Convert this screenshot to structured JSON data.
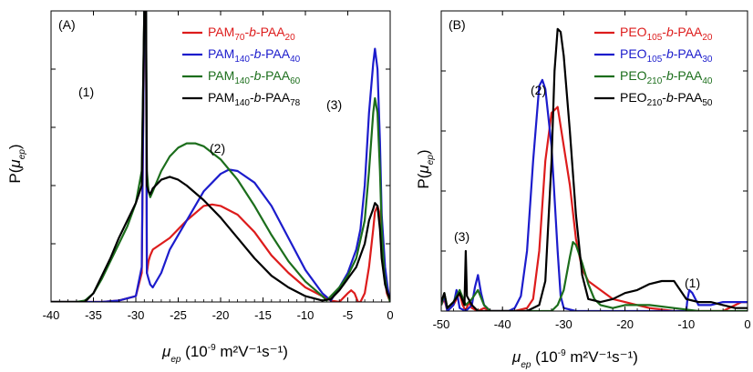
{
  "chart_data": [
    {
      "type": "line",
      "panel_label": "(A)",
      "ylabel": {
        "main": "P(",
        "italic": "μ",
        "sub": "ep",
        "close": ")"
      },
      "xlabel": {
        "italic": "μ",
        "sub": "ep",
        "pre": "(10",
        "sup": "-9",
        "post": " m²V⁻¹s⁻¹)"
      },
      "xlim": [
        -40,
        0
      ],
      "x_ticks": [
        -40,
        -35,
        -30,
        -25,
        -20,
        -15,
        -10,
        -5,
        0
      ],
      "ylim": [
        0,
        1
      ],
      "y_ticks_shown_unlabeled": [
        0.2,
        0.4,
        0.6,
        0.8
      ],
      "grid": false,
      "legend_placement": "top-right",
      "annotations": [
        {
          "text": "(1)",
          "x": -31.5,
          "y": 0.69
        },
        {
          "text": "(2)",
          "x": -22.5,
          "y": 0.52
        },
        {
          "text": "(3)",
          "x": -6.5,
          "y": 0.66
        }
      ],
      "series": [
        {
          "name": {
            "a": "PAM",
            "as": "70",
            "b": "-",
            "bi": "b",
            "c": "-PAA",
            "cs": "20"
          },
          "color": "#dd1c1c",
          "x": [
            -40,
            -38,
            -36,
            -34,
            -32,
            -30,
            -29.3,
            -29,
            -28.8,
            -28.7,
            -28.5,
            -28.3,
            -28,
            -27,
            -26,
            -25,
            -24,
            -22,
            -21,
            -20,
            -18,
            -16,
            -14,
            -12,
            -10,
            -8,
            -7,
            -6,
            -5,
            -4.6,
            -4.2,
            -3.8,
            -3.5,
            -3,
            -2.5,
            -2,
            -1.8,
            -1.5,
            -1.2,
            -1,
            -0.7,
            -0.4,
            0
          ],
          "y": [
            0,
            0,
            0,
            0,
            0.005,
            0.02,
            0.1,
            1.0,
            1.0,
            0.1,
            0.14,
            0.16,
            0.18,
            0.2,
            0.22,
            0.25,
            0.28,
            0.33,
            0.335,
            0.33,
            0.3,
            0.24,
            0.16,
            0.1,
            0.05,
            0.02,
            0.005,
            0,
            0.03,
            0.04,
            0.03,
            0.0,
            0.0,
            0.03,
            0.12,
            0.25,
            0.31,
            0.33,
            0.3,
            0.2,
            0.1,
            0.03,
            0.0
          ]
        },
        {
          "name": {
            "a": "PAM",
            "as": "140",
            "b": "-",
            "bi": "b",
            "c": "-PAA",
            "cs": "40"
          },
          "color": "#1c1ccc",
          "x": [
            -40,
            -38,
            -36,
            -34,
            -32,
            -30,
            -29.3,
            -29,
            -28.8,
            -28.7,
            -28.5,
            -28.3,
            -28,
            -27,
            -26,
            -24,
            -22,
            -20,
            -19,
            -18,
            -16,
            -14,
            -12,
            -10,
            -8,
            -7,
            -6,
            -5,
            -4,
            -3.5,
            -3,
            -2.5,
            -2,
            -1.8,
            -1.5,
            -1.2,
            -1,
            -0.6,
            -0.3,
            0
          ],
          "y": [
            0,
            0,
            0,
            0,
            0.005,
            0.02,
            0.12,
            1.0,
            1.0,
            0.1,
            0.08,
            0.06,
            0.05,
            0.1,
            0.18,
            0.28,
            0.38,
            0.44,
            0.455,
            0.45,
            0.41,
            0.33,
            0.22,
            0.11,
            0.03,
            0.005,
            0.05,
            0.1,
            0.18,
            0.25,
            0.4,
            0.65,
            0.82,
            0.87,
            0.8,
            0.55,
            0.3,
            0.12,
            0.05,
            0.0
          ]
        },
        {
          "name": {
            "a": "PAM",
            "as": "140",
            "b": "-",
            "bi": "b",
            "c": "-PAA",
            "cs": "60"
          },
          "color": "#1c6e1c",
          "x": [
            -40,
            -38,
            -37,
            -36,
            -35,
            -34,
            -33,
            -32,
            -31,
            -30,
            -29.3,
            -29,
            -28.8,
            -28.7,
            -28.5,
            -28.3,
            -28,
            -27,
            -26,
            -25,
            -24,
            -23,
            -22,
            -20,
            -18,
            -16,
            -14,
            -12,
            -10,
            -8,
            -7.5,
            -7,
            -6,
            -5,
            -4,
            -3,
            -2.5,
            -2,
            -1.8,
            -1.5,
            -1.2,
            -1,
            -0.7,
            -0.4,
            0
          ],
          "y": [
            0,
            0,
            0,
            0.005,
            0.03,
            0.08,
            0.14,
            0.2,
            0.26,
            0.34,
            0.45,
            1.0,
            1.0,
            0.45,
            0.38,
            0.36,
            0.38,
            0.45,
            0.5,
            0.53,
            0.545,
            0.545,
            0.535,
            0.49,
            0.42,
            0.33,
            0.23,
            0.14,
            0.07,
            0.02,
            0.005,
            0.02,
            0.05,
            0.09,
            0.15,
            0.28,
            0.45,
            0.65,
            0.7,
            0.65,
            0.45,
            0.25,
            0.1,
            0.04,
            0.0
          ]
        },
        {
          "name": {
            "a": "PAM",
            "as": "140",
            "b": "-",
            "bi": "b",
            "c": "-PAA",
            "cs": "78"
          },
          "color": "#000000",
          "x": [
            -40,
            -38,
            -36,
            -35,
            -34,
            -33,
            -32,
            -31,
            -30,
            -29.3,
            -29,
            -28.8,
            -28.7,
            -28.5,
            -28.3,
            -28,
            -27,
            -26,
            -25,
            -24,
            -22,
            -20,
            -18,
            -16,
            -14,
            -12,
            -10,
            -8,
            -7,
            -6,
            -5,
            -4,
            -3,
            -2.5,
            -2,
            -1.8,
            -1.5,
            -1.2,
            -1,
            -0.6,
            -0.3,
            0
          ],
          "y": [
            0,
            0,
            0,
            0.03,
            0.09,
            0.15,
            0.22,
            0.28,
            0.34,
            0.4,
            1.0,
            1.0,
            0.4,
            0.38,
            0.37,
            0.39,
            0.42,
            0.43,
            0.42,
            0.4,
            0.35,
            0.29,
            0.22,
            0.15,
            0.09,
            0.05,
            0.02,
            0.005,
            0.01,
            0.04,
            0.08,
            0.12,
            0.2,
            0.28,
            0.32,
            0.34,
            0.33,
            0.25,
            0.15,
            0.06,
            0.03,
            0.01
          ]
        }
      ]
    },
    {
      "type": "line",
      "panel_label": "(B)",
      "ylabel": {
        "main": "P(",
        "italic": "μ",
        "sub": "ep",
        "close": ")"
      },
      "xlabel": {
        "italic": "μ",
        "sub": "ep",
        "pre": "(10",
        "sup": "-9",
        "post": " m²V⁻¹s⁻¹)"
      },
      "xlim": [
        -50,
        0
      ],
      "x_ticks": [
        -50,
        -40,
        -30,
        -20,
        -10,
        0
      ],
      "ylim": [
        0,
        1
      ],
      "y_ticks_shown_unlabeled": [
        0.2,
        0.4,
        0.6,
        0.8
      ],
      "grid": false,
      "legend_placement": "top-right",
      "annotations": [
        {
          "text": "(2)",
          "x": -36.5,
          "y": 0.73
        },
        {
          "text": "(3)",
          "x": -47.5,
          "y": 0.24
        },
        {
          "text": "(1)",
          "x": -10.5,
          "y": 0.09
        }
      ],
      "series": [
        {
          "name": {
            "a": "PEO",
            "as": "105",
            "b": "-",
            "bi": "b",
            "c": "-PAA",
            "cs": "20"
          },
          "color": "#dd1c1c",
          "x": [
            -50,
            -49.5,
            -49,
            -48,
            -47,
            -46.5,
            -46,
            -45.5,
            -45,
            -44,
            -43,
            -42,
            -40,
            -38,
            -36,
            -35,
            -34,
            -33,
            -32,
            -31,
            -30,
            -29,
            -28,
            -27,
            -26,
            -24,
            -22,
            -20,
            -18,
            -16,
            -12,
            -8,
            -4,
            -2,
            -1,
            0
          ],
          "y": [
            0.02,
            0.04,
            0.0,
            0.02,
            0.06,
            0.02,
            0.0,
            0.03,
            0.01,
            0.0,
            0.01,
            0.0,
            0.0,
            0.0,
            0.01,
            0.04,
            0.2,
            0.5,
            0.66,
            0.68,
            0.55,
            0.42,
            0.24,
            0.14,
            0.1,
            0.07,
            0.04,
            0.03,
            0.02,
            0.01,
            0.0,
            0.0,
            0.0,
            0.02,
            0.03,
            0.03
          ]
        },
        {
          "name": {
            "a": "PEO",
            "as": "105",
            "b": "-",
            "bi": "b",
            "c": "-PAA",
            "cs": "30"
          },
          "color": "#1c1ccc",
          "x": [
            -50,
            -49.5,
            -49,
            -48,
            -47.5,
            -47,
            -46,
            -45,
            -44.5,
            -44,
            -43.5,
            -43,
            -42,
            -41,
            -40,
            -39,
            -38,
            -37,
            -36,
            -35,
            -34,
            -33.5,
            -33,
            -32,
            -31,
            -30.5,
            -30,
            -28,
            -20,
            -12,
            -10,
            -9.8,
            -9.5,
            -9,
            -8,
            -6,
            -4,
            -2,
            0
          ],
          "y": [
            0.02,
            0.05,
            0.0,
            0.02,
            0.07,
            0.01,
            0.0,
            0.02,
            0.08,
            0.12,
            0.06,
            0.02,
            0.0,
            0.0,
            0.0,
            0.0,
            0.01,
            0.05,
            0.2,
            0.5,
            0.75,
            0.77,
            0.74,
            0.55,
            0.2,
            0.05,
            0.01,
            0.0,
            0.0,
            0.0,
            0.0,
            0.04,
            0.07,
            0.06,
            0.02,
            0.02,
            0.03,
            0.03,
            0.03
          ]
        },
        {
          "name": {
            "a": "PEO",
            "as": "210",
            "b": "-",
            "bi": "b",
            "c": "-PAA",
            "cs": "40"
          },
          "color": "#1c6e1c",
          "x": [
            -50,
            -49.5,
            -49,
            -48,
            -47,
            -46,
            -45,
            -44,
            -43,
            -42,
            -38,
            -34,
            -32,
            -31,
            -30,
            -29,
            -28.5,
            -28,
            -27,
            -26,
            -25,
            -24,
            -22,
            -20,
            -16,
            -12,
            -8,
            -4,
            0
          ],
          "y": [
            0.02,
            0.06,
            0.01,
            0.03,
            0.07,
            0.02,
            0.04,
            0.07,
            0.02,
            0.0,
            0.0,
            0.0,
            0.0,
            0.02,
            0.07,
            0.18,
            0.23,
            0.22,
            0.16,
            0.09,
            0.04,
            0.02,
            0.01,
            0.02,
            0.02,
            0.01,
            0.0,
            0.0,
            0.0
          ]
        },
        {
          "name": {
            "a": "PEO",
            "as": "210",
            "b": "-",
            "bi": "b",
            "c": "-PAA",
            "cs": "50"
          },
          "color": "#000000",
          "x": [
            -50,
            -49.5,
            -49,
            -48,
            -47,
            -46.2,
            -46,
            -45.8,
            -45,
            -44,
            -43,
            -42,
            -40,
            -36,
            -34,
            -33,
            -32,
            -31.5,
            -31,
            -30.5,
            -30,
            -29,
            -28,
            -27,
            -26,
            -24,
            -22,
            -20,
            -18,
            -16,
            -14,
            -12,
            -11,
            -10,
            -8,
            -6,
            -4,
            -2,
            0
          ],
          "y": [
            0.03,
            0.06,
            0.01,
            0.03,
            0.06,
            0.02,
            0.2,
            0.05,
            0.02,
            0.0,
            0.0,
            0.0,
            0.0,
            0.0,
            0.02,
            0.1,
            0.5,
            0.8,
            0.94,
            0.93,
            0.85,
            0.6,
            0.32,
            0.12,
            0.04,
            0.03,
            0.04,
            0.06,
            0.07,
            0.09,
            0.1,
            0.1,
            0.07,
            0.04,
            0.03,
            0.03,
            0.02,
            0.01,
            0.01
          ]
        }
      ]
    }
  ]
}
